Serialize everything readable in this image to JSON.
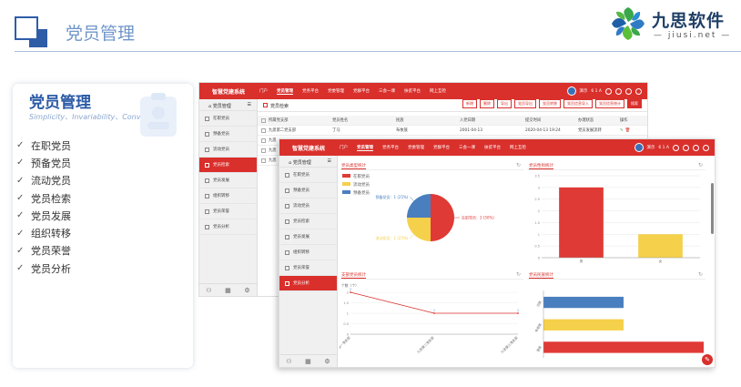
{
  "slide": {
    "title": "党员管理",
    "logo": {
      "cn": "九思软件",
      "en": "— jiusi.net —"
    }
  },
  "card": {
    "title": "党员管理",
    "subtitle": "Simplicity、Invariability、Convertibility",
    "features": [
      "在职党员",
      "预备党员",
      "流动党员",
      "党员检索",
      "党员发展",
      "组织转移",
      "党员荣誉",
      "党员分析"
    ]
  },
  "app": {
    "brand": "智慧党建系统",
    "menu": [
      "门户",
      "党员管理",
      "党务平台",
      "党委管理",
      "党群平台",
      "三会一课",
      "扶贫平台",
      "网上互检"
    ],
    "user": "演示",
    "user_badge": "6 1 A",
    "sidebar_title": "党员管理",
    "sidebar_items": [
      "在职党员",
      "预备党员",
      "流动党员",
      "党员检索",
      "党员发展",
      "组织转移",
      "党员荣誉",
      "党员分析"
    ]
  },
  "window1": {
    "tab_label": "党员检索",
    "toolbar": [
      "新增",
      "删除",
      "导出",
      "党员导出",
      "党员转移",
      "党员信息导入",
      "党员信息统计",
      "搜索"
    ],
    "table": {
      "headers": [
        "所属党支部",
        "党员姓名",
        "民族",
        "入党日期",
        "提交时间",
        "办理状态",
        "操作"
      ],
      "rows": [
        [
          "九思第二党支部",
          "丁马",
          "布依族",
          "2001-04-13",
          "2020-04-13 19:24",
          "党员发展流转",
          ""
        ],
        [
          "九思",
          "",
          "",
          "",
          "",
          "",
          ""
        ],
        [
          "九思",
          "",
          "",
          "",
          "",
          "",
          ""
        ],
        [
          "九思",
          "",
          "",
          "",
          "",
          "",
          ""
        ]
      ]
    }
  },
  "window2": {
    "panels": {
      "pie_title": "党员类型统计",
      "bar_title": "党员性别统计",
      "line_title": "支部党员统计",
      "hbar_title": "党员民族统计"
    }
  },
  "chart_data": [
    {
      "type": "pie",
      "title": "党员类型统计",
      "legend": [
        "在职党员",
        "流动党员",
        "预备党员"
      ],
      "legend_position": "top-left",
      "colors": [
        "#e03a36",
        "#f5d04a",
        "#4a7fbf"
      ],
      "slices": [
        {
          "label": "在职党员",
          "value": 50,
          "display": "在职党员：2 (50%)"
        },
        {
          "label": "流动党员",
          "value": 25,
          "display": "流动党员：1 (25%)"
        },
        {
          "label": "预备党员",
          "value": 25,
          "display": "预备党员：1 (25%)"
        }
      ]
    },
    {
      "type": "bar",
      "title": "党员性别统计",
      "categories": [
        "男",
        "女"
      ],
      "values": [
        3,
        1
      ],
      "colors": [
        "#e03a36",
        "#f5d04a"
      ],
      "ylim": [
        0,
        3.5
      ],
      "grid": true
    },
    {
      "type": "line",
      "title": "支部党员统计",
      "ylabel": "个数（个）",
      "categories": [
        "九思第一党支部",
        "九思第二党支部",
        "九思第三党支部"
      ],
      "values": [
        2,
        1,
        1
      ],
      "ylim": [
        0,
        2
      ],
      "yticks": [
        0,
        0.5,
        1,
        1.5,
        2
      ],
      "color": "#d9302c"
    },
    {
      "type": "bar",
      "orientation": "horizontal",
      "title": "党员民族统计",
      "categories": [
        "汉族",
        "布依族",
        "苗族"
      ],
      "values": [
        1,
        1,
        2
      ],
      "colors": [
        "#4a7fbf",
        "#f5d04a",
        "#e03a36"
      ]
    }
  ]
}
